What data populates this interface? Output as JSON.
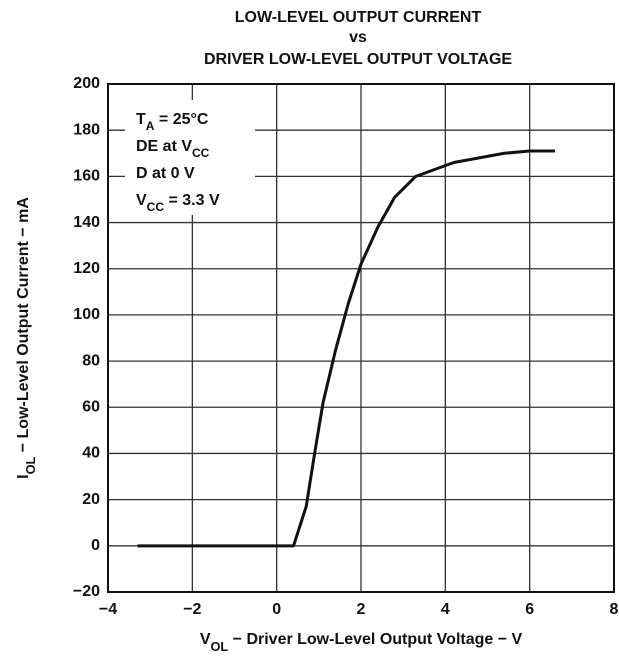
{
  "chart_data": {
    "type": "line",
    "title": [
      "LOW-LEVEL OUTPUT CURRENT",
      "vs",
      "DRIVER LOW-LEVEL OUTPUT VOLTAGE"
    ],
    "x_label": [
      "V",
      "OL",
      " − Driver Low-Level Output Voltage − V"
    ],
    "y_label": [
      "I",
      "OL",
      " − Low-Level Output Current − mA"
    ],
    "annotations": [
      [
        "T",
        "A",
        " = 25°C"
      ],
      [
        "DE at V",
        "CC"
      ],
      [
        "D at 0 V"
      ],
      [
        "V",
        "CC",
        " = 3.3 V"
      ]
    ],
    "xlim": [
      -4,
      8
    ],
    "xticks": [
      {
        "value": -4,
        "label": "−4"
      },
      {
        "value": -2,
        "label": "−2"
      },
      0,
      2,
      4,
      6,
      8
    ],
    "ylim": [
      -20,
      200
    ],
    "yticks": [
      {
        "value": -20,
        "label": "−20"
      },
      0,
      20,
      40,
      60,
      80,
      100,
      120,
      140,
      160,
      180,
      200
    ],
    "grid": true,
    "series": [
      {
        "color": "#111111",
        "x": [
          -3.3,
          0.4,
          0.7,
          0.9,
          1.1,
          1.4,
          1.7,
          2.0,
          2.4,
          2.8,
          3.3,
          4.2,
          5.4,
          6.0,
          6.6
        ],
        "values": [
          0,
          0,
          17,
          40,
          62,
          85,
          105,
          122,
          138,
          151,
          160,
          166,
          170,
          171,
          171
        ]
      }
    ]
  }
}
